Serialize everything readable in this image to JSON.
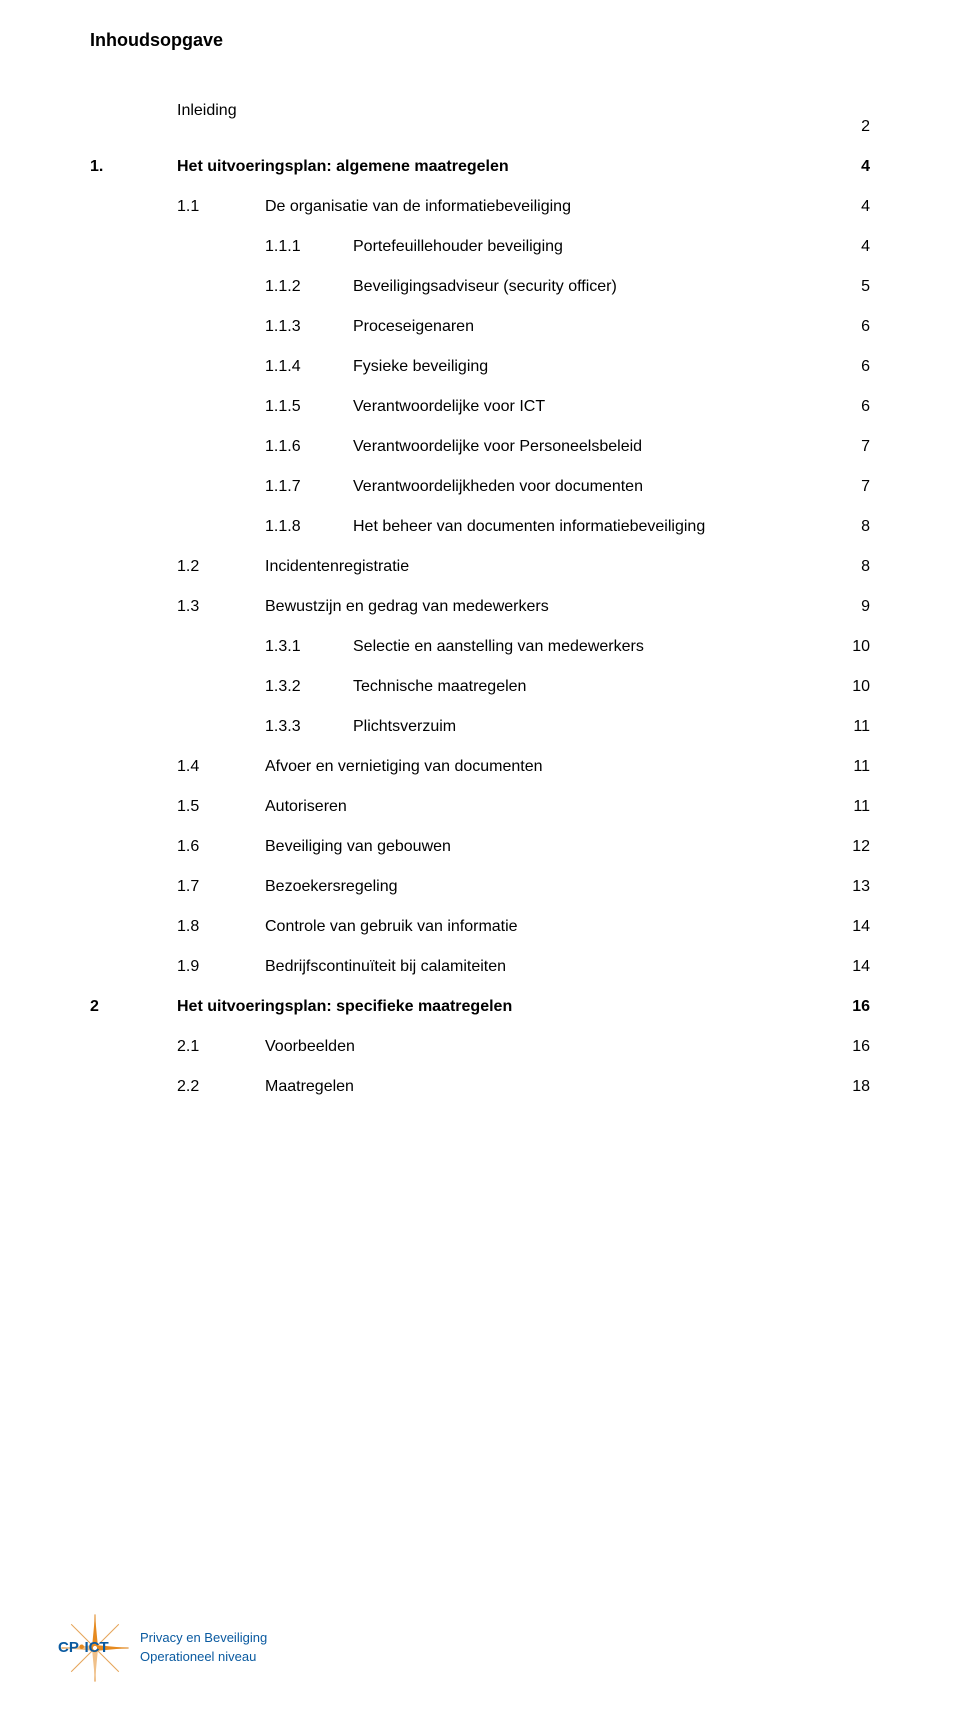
{
  "doc_title": "Inhoudsopgave",
  "toc": [
    {
      "num": "",
      "text": "Inleiding",
      "page": "2",
      "level": "level-0 no-number",
      "bold": false
    },
    {
      "num": "1.",
      "text": "Het uitvoeringsplan: algemene maatregelen",
      "page": "4",
      "level": "level-0-bold",
      "bold": true
    },
    {
      "num": "1.1",
      "text": "De organisatie van de informatiebeveiliging",
      "page": "4",
      "level": "level-1",
      "bold": false
    },
    {
      "num": "1.1.1",
      "text": "Portefeuillehouder beveiliging",
      "page": "4",
      "level": "level-2",
      "bold": false
    },
    {
      "num": "1.1.2",
      "text": "Beveiligingsadviseur (security officer)",
      "page": "5",
      "level": "level-2",
      "bold": false
    },
    {
      "num": "1.1.3",
      "text": "Proceseigenaren",
      "page": "6",
      "level": "level-2",
      "bold": false
    },
    {
      "num": "1.1.4",
      "text": "Fysieke beveiliging",
      "page": "6",
      "level": "level-2",
      "bold": false
    },
    {
      "num": "1.1.5",
      "text": "Verantwoordelijke voor ICT",
      "page": "6",
      "level": "level-2",
      "bold": false
    },
    {
      "num": "1.1.6",
      "text": "Verantwoordelijke voor Personeelsbeleid",
      "page": "7",
      "level": "level-2",
      "bold": false
    },
    {
      "num": "1.1.7",
      "text": "Verantwoordelijkheden voor documenten",
      "page": "7",
      "level": "level-2",
      "bold": false
    },
    {
      "num": "1.1.8",
      "text": "Het beheer van documenten informatiebeveiliging",
      "page": "8",
      "level": "level-2",
      "bold": false
    },
    {
      "num": "1.2",
      "text": "Incidentenregistratie",
      "page": "8",
      "level": "level-1",
      "bold": false
    },
    {
      "num": "1.3",
      "text": "Bewustzijn en gedrag van medewerkers",
      "page": "9",
      "level": "level-1",
      "bold": false
    },
    {
      "num": "1.3.1",
      "text": "Selectie en aanstelling van medewerkers",
      "page": "10",
      "level": "level-2",
      "bold": false
    },
    {
      "num": "1.3.2",
      "text": "Technische maatregelen",
      "page": "10",
      "level": "level-2",
      "bold": false
    },
    {
      "num": "1.3.3",
      "text": "Plichtsverzuim",
      "page": "11",
      "level": "level-2",
      "bold": false
    },
    {
      "num": "1.4",
      "text": "Afvoer en vernietiging van documenten",
      "page": "11",
      "level": "level-1",
      "bold": false
    },
    {
      "num": "1.5",
      "text": "Autoriseren",
      "page": "11",
      "level": "level-1",
      "bold": false
    },
    {
      "num": "1.6",
      "text": "Beveiliging van gebouwen",
      "page": "12",
      "level": "level-1",
      "bold": false
    },
    {
      "num": "1.7",
      "text": "Bezoekersregeling",
      "page": "13",
      "level": "level-1",
      "bold": false
    },
    {
      "num": "1.8",
      "text": "Controle van gebruik van informatie",
      "page": "14",
      "level": "level-1",
      "bold": false
    },
    {
      "num": "1.9",
      "text": "Bedrijfscontinuïteit bij calamiteiten",
      "page": "14",
      "level": "level-1",
      "bold": false
    },
    {
      "num": "2",
      "text": "Het uitvoeringsplan: specifieke maatregelen",
      "page": "16",
      "level": "level-0-bold",
      "bold": true
    },
    {
      "num": "2.1",
      "text": "Voorbeelden",
      "page": "16",
      "level": "level-1",
      "bold": false
    },
    {
      "num": "2.2",
      "text": "Maatregelen",
      "page": "18",
      "level": "level-1",
      "bold": false
    }
  ],
  "footer": {
    "brand_cp": "CP",
    "brand_sep": "•",
    "brand_ict": "ICT",
    "line1": "Privacy en Beveiliging",
    "line2": "Operationeel niveau"
  },
  "colors": {
    "text": "#000000",
    "brand_blue": "#0a5aa0",
    "brand_orange": "#e68a1f",
    "background": "#ffffff"
  }
}
